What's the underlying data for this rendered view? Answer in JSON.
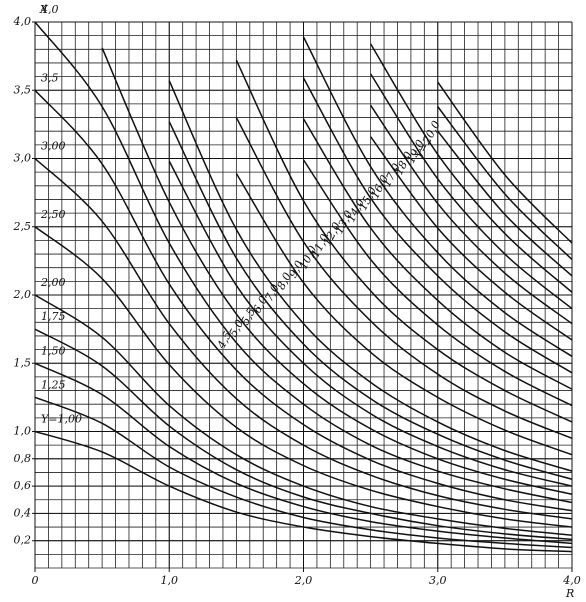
{
  "chart_data": {
    "type": "line",
    "x_label": "R",
    "y_label": "X",
    "x": [
      0,
      0.5,
      1,
      1.5,
      2,
      2.5,
      3,
      3.5,
      4
    ],
    "xlim": [
      0,
      4
    ],
    "ylim": [
      0,
      4
    ],
    "xticks": [
      0,
      {
        "value": 1,
        "label": "1,0"
      },
      {
        "value": 2,
        "label": "2,0"
      },
      {
        "value": 3,
        "label": "3,0"
      },
      {
        "value": 4,
        "label": "4,0"
      }
    ],
    "yticks": [
      {
        "value": 0.2,
        "label": "0,2"
      },
      {
        "value": 0.4,
        "label": "0,4"
      },
      {
        "value": 0.6,
        "label": "0,6"
      },
      {
        "value": 0.8,
        "label": "0,8"
      },
      {
        "value": 1,
        "label": "1,0"
      },
      {
        "value": 1.5,
        "label": "1,5"
      },
      {
        "value": 2,
        "label": "2,0"
      },
      {
        "value": 2.5,
        "label": "2,5"
      },
      {
        "value": 3,
        "label": "3,0"
      },
      {
        "value": 3.5,
        "label": "3,5"
      },
      {
        "value": 4,
        "label": "4,0"
      }
    ],
    "grid": true,
    "grid_step": 0.1,
    "color": "#111111",
    "series": [
      {
        "name": "Y=1,00",
        "values": [
          1,
          0.85,
          0.6,
          0.41,
          0.3,
          0.23,
          0.18,
          0.14,
          0.12
        ]
      },
      {
        "name": "1,25",
        "values": [
          1.25,
          1.06,
          0.74,
          0.52,
          0.37,
          0.28,
          0.22,
          0.18,
          0.15
        ]
      },
      {
        "name": "1,50",
        "values": [
          1.5,
          1.27,
          0.89,
          0.62,
          0.45,
          0.34,
          0.27,
          0.22,
          0.18
        ]
      },
      {
        "name": "1,75",
        "values": [
          1.75,
          1.48,
          1.04,
          0.72,
          0.52,
          0.4,
          0.31,
          0.25,
          0.21
        ]
      },
      {
        "name": "2,00",
        "values": [
          2,
          1.69,
          1.19,
          0.83,
          0.6,
          0.45,
          0.36,
          0.29,
          0.24
        ]
      },
      {
        "name": "2,50",
        "values": [
          2.5,
          2.12,
          1.49,
          1.03,
          0.75,
          0.57,
          0.45,
          0.36,
          0.3
        ]
      },
      {
        "name": "3,00",
        "values": [
          3,
          2.54,
          1.79,
          1.24,
          0.9,
          0.68,
          0.53,
          0.43,
          0.36
        ]
      },
      {
        "name": "3,5",
        "values": [
          3.5,
          2.96,
          2.08,
          1.45,
          1.05,
          0.79,
          0.62,
          0.5,
          0.42
        ]
      },
      {
        "name": "4,0",
        "values": [
          4,
          3.38,
          2.38,
          1.65,
          1.2,
          0.9,
          0.71,
          0.58,
          0.48
        ]
      },
      {
        "name": "4,5",
        "values": [
          null,
          3.81,
          2.68,
          1.86,
          1.35,
          1.02,
          0.8,
          0.65,
          0.54
        ]
      },
      {
        "name": "5,0",
        "values": [
          null,
          null,
          2.98,
          2.07,
          1.5,
          1.13,
          0.89,
          0.72,
          0.6
        ]
      },
      {
        "name": "5,5",
        "values": [
          null,
          null,
          3.27,
          2.27,
          1.64,
          1.24,
          0.98,
          0.79,
          0.65
        ]
      },
      {
        "name": "6,0",
        "values": [
          null,
          null,
          3.57,
          2.48,
          1.79,
          1.36,
          1.07,
          0.86,
          0.71
        ]
      },
      {
        "name": "7,0",
        "values": [
          null,
          null,
          null,
          2.89,
          2.09,
          1.58,
          1.25,
          1.01,
          0.83
        ]
      },
      {
        "name": "8,0",
        "values": [
          null,
          null,
          null,
          3.3,
          2.39,
          1.81,
          1.42,
          1.15,
          0.95
        ]
      },
      {
        "name": "9,0",
        "values": [
          null,
          null,
          null,
          3.72,
          2.69,
          2.03,
          1.6,
          1.3,
          1.07
        ]
      },
      {
        "name": "10,0",
        "values": [
          null,
          null,
          null,
          null,
          2.99,
          2.26,
          1.78,
          1.44,
          1.19
        ]
      },
      {
        "name": "11,0",
        "values": [
          null,
          null,
          null,
          null,
          3.29,
          2.49,
          1.96,
          1.58,
          1.31
        ]
      },
      {
        "name": "12,0",
        "values": [
          null,
          null,
          null,
          null,
          3.59,
          2.71,
          2.14,
          1.73,
          1.43
        ]
      },
      {
        "name": "13,0",
        "values": [
          null,
          null,
          null,
          null,
          3.89,
          2.94,
          2.31,
          1.87,
          1.55
        ]
      },
      {
        "name": "14,0",
        "values": [
          null,
          null,
          null,
          null,
          null,
          3.16,
          2.49,
          2.02,
          1.67
        ]
      },
      {
        "name": "15,0",
        "values": [
          null,
          null,
          null,
          null,
          null,
          3.39,
          2.67,
          2.16,
          1.79
        ]
      },
      {
        "name": "16,0",
        "values": [
          null,
          null,
          null,
          null,
          null,
          3.62,
          2.85,
          2.3,
          1.9
        ]
      },
      {
        "name": "17,0",
        "values": [
          null,
          null,
          null,
          null,
          null,
          3.84,
          3.03,
          2.45,
          2.02
        ]
      },
      {
        "name": "18,0",
        "values": [
          null,
          null,
          null,
          null,
          null,
          null,
          3.2,
          2.59,
          2.14
        ]
      },
      {
        "name": "19,0",
        "values": [
          null,
          null,
          null,
          null,
          null,
          null,
          3.38,
          2.74,
          2.26
        ]
      },
      {
        "name": "Y=20,0",
        "values": [
          null,
          null,
          null,
          null,
          null,
          null,
          3.56,
          2.88,
          2.38
        ]
      }
    ]
  }
}
